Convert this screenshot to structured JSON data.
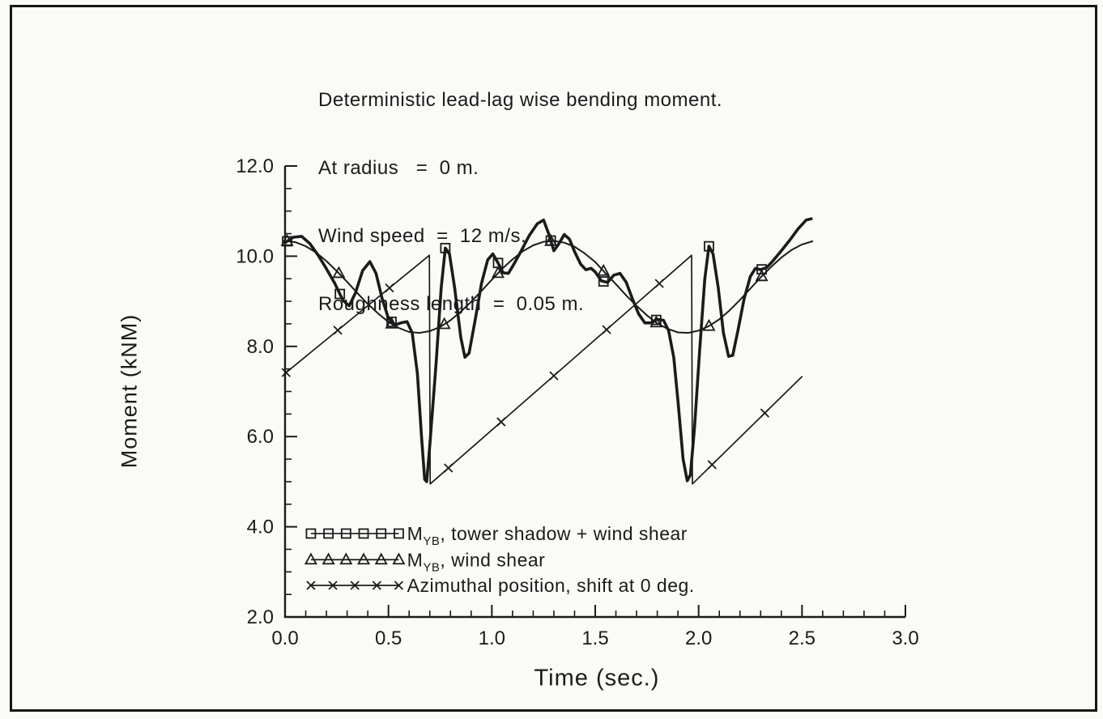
{
  "colors": {
    "ink": "#1b1b1b",
    "paper": "#fafaf7"
  },
  "chart_data": {
    "type": "line",
    "header_lines": [
      "Deterministic lead-lag wise bending moment.",
      "At radius   =  0 m.",
      "Wind speed  =  12 m/s.",
      "Roughness length  =  0.05 m."
    ],
    "xlabel": "Time  (sec.)",
    "ylabel": "Moment  (kNM)",
    "xlim": [
      0,
      3
    ],
    "ylim": [
      2,
      12
    ],
    "xticks": [
      0,
      0.5,
      1.0,
      1.5,
      2.0,
      2.5,
      3.0
    ],
    "xtick_labels": [
      "0.0",
      "0.5",
      "1.0",
      "1.5",
      "2.0",
      "2.5",
      "3.0"
    ],
    "yticks": [
      2,
      4,
      6,
      8,
      10,
      12
    ],
    "ytick_labels": [
      "2.0",
      "4.0",
      "6.0",
      "8.0",
      "10.0",
      "12.0"
    ],
    "x_minor_step": 0.1,
    "y_minor_step": 0.5,
    "grid": false,
    "series": [
      {
        "name": "MYB, tower shadow + wind shear",
        "marker": "square",
        "line_width": 3.6,
        "points": [
          [
            0.0,
            10.3
          ],
          [
            0.04,
            10.42
          ],
          [
            0.08,
            10.44
          ],
          [
            0.12,
            10.28
          ],
          [
            0.16,
            10.02
          ],
          [
            0.2,
            9.72
          ],
          [
            0.24,
            9.4
          ],
          [
            0.28,
            9.02
          ],
          [
            0.31,
            8.9
          ],
          [
            0.34,
            9.18
          ],
          [
            0.375,
            9.68
          ],
          [
            0.41,
            9.88
          ],
          [
            0.44,
            9.62
          ],
          [
            0.47,
            9.05
          ],
          [
            0.5,
            8.62
          ],
          [
            0.53,
            8.47
          ],
          [
            0.56,
            8.52
          ],
          [
            0.59,
            8.55
          ],
          [
            0.615,
            8.3
          ],
          [
            0.64,
            7.4
          ],
          [
            0.66,
            6.0
          ],
          [
            0.675,
            5.05
          ],
          [
            0.685,
            5.0
          ],
          [
            0.7,
            5.8
          ],
          [
            0.73,
            7.6
          ],
          [
            0.755,
            9.3
          ],
          [
            0.775,
            10.18
          ],
          [
            0.795,
            10.05
          ],
          [
            0.82,
            9.3
          ],
          [
            0.85,
            8.2
          ],
          [
            0.87,
            7.76
          ],
          [
            0.89,
            7.85
          ],
          [
            0.92,
            8.6
          ],
          [
            0.95,
            9.4
          ],
          [
            0.98,
            9.92
          ],
          [
            1.005,
            10.05
          ],
          [
            1.03,
            9.85
          ],
          [
            1.055,
            9.63
          ],
          [
            1.08,
            9.62
          ],
          [
            1.11,
            9.85
          ],
          [
            1.14,
            10.1
          ],
          [
            1.18,
            10.45
          ],
          [
            1.22,
            10.72
          ],
          [
            1.25,
            10.8
          ],
          [
            1.275,
            10.5
          ],
          [
            1.3,
            10.12
          ],
          [
            1.325,
            10.28
          ],
          [
            1.35,
            10.48
          ],
          [
            1.375,
            10.38
          ],
          [
            1.4,
            10.1
          ],
          [
            1.43,
            9.82
          ],
          [
            1.455,
            9.7
          ],
          [
            1.48,
            9.73
          ],
          [
            1.5,
            9.65
          ],
          [
            1.53,
            9.45
          ],
          [
            1.56,
            9.42
          ],
          [
            1.59,
            9.58
          ],
          [
            1.62,
            9.62
          ],
          [
            1.65,
            9.42
          ],
          [
            1.68,
            9.05
          ],
          [
            1.71,
            8.72
          ],
          [
            1.74,
            8.52
          ],
          [
            1.77,
            8.52
          ],
          [
            1.8,
            8.6
          ],
          [
            1.83,
            8.58
          ],
          [
            1.855,
            8.35
          ],
          [
            1.88,
            7.75
          ],
          [
            1.9,
            6.8
          ],
          [
            1.925,
            5.5
          ],
          [
            1.945,
            5.02
          ],
          [
            1.96,
            5.15
          ],
          [
            1.98,
            6.2
          ],
          [
            2.005,
            7.9
          ],
          [
            2.03,
            9.5
          ],
          [
            2.05,
            10.22
          ],
          [
            2.07,
            10.05
          ],
          [
            2.095,
            9.3
          ],
          [
            2.12,
            8.3
          ],
          [
            2.145,
            7.78
          ],
          [
            2.165,
            7.8
          ],
          [
            2.19,
            8.35
          ],
          [
            2.22,
            9.05
          ],
          [
            2.25,
            9.55
          ],
          [
            2.275,
            9.73
          ],
          [
            2.3,
            9.7
          ],
          [
            2.33,
            9.75
          ],
          [
            2.36,
            9.9
          ],
          [
            2.4,
            10.12
          ],
          [
            2.44,
            10.35
          ],
          [
            2.48,
            10.6
          ],
          [
            2.52,
            10.8
          ],
          [
            2.545,
            10.83
          ]
        ],
        "marker_t": [
          0.01,
          0.265,
          0.515,
          0.775,
          1.03,
          1.285,
          1.54,
          1.795,
          2.05,
          2.305
        ]
      },
      {
        "name": "MYB, wind shear",
        "marker": "triangle",
        "line_width": 2.0,
        "points": [
          [
            0,
            10.34
          ],
          [
            0.05,
            10.31
          ],
          [
            0.1,
            10.22
          ],
          [
            0.15,
            10.08
          ],
          [
            0.2,
            9.89
          ],
          [
            0.25,
            9.67
          ],
          [
            0.3,
            9.43
          ],
          [
            0.35,
            9.18
          ],
          [
            0.4,
            8.94
          ],
          [
            0.45,
            8.73
          ],
          [
            0.5,
            8.54
          ],
          [
            0.55,
            8.41
          ],
          [
            0.6,
            8.32
          ],
          [
            0.65,
            8.3
          ],
          [
            0.7,
            8.34
          ],
          [
            0.75,
            8.43
          ],
          [
            0.8,
            8.58
          ],
          [
            0.85,
            8.77
          ],
          [
            0.9,
            8.99
          ],
          [
            0.95,
            9.23
          ],
          [
            1.0,
            9.48
          ],
          [
            1.05,
            9.72
          ],
          [
            1.1,
            9.93
          ],
          [
            1.15,
            10.11
          ],
          [
            1.2,
            10.24
          ],
          [
            1.25,
            10.32
          ],
          [
            1.3,
            10.34
          ],
          [
            1.35,
            10.3
          ],
          [
            1.4,
            10.21
          ],
          [
            1.45,
            10.06
          ],
          [
            1.5,
            9.87
          ],
          [
            1.55,
            9.62
          ],
          [
            1.6,
            9.38
          ],
          [
            1.65,
            9.13
          ],
          [
            1.7,
            8.9
          ],
          [
            1.75,
            8.69
          ],
          [
            1.8,
            8.51
          ],
          [
            1.85,
            8.39
          ],
          [
            1.9,
            8.31
          ],
          [
            1.95,
            8.3
          ],
          [
            2.0,
            8.35
          ],
          [
            2.05,
            8.45
          ],
          [
            2.1,
            8.6
          ],
          [
            2.15,
            8.8
          ],
          [
            2.2,
            9.03
          ],
          [
            2.25,
            9.28
          ],
          [
            2.3,
            9.53
          ],
          [
            2.35,
            9.76
          ],
          [
            2.4,
            9.97
          ],
          [
            2.45,
            10.14
          ],
          [
            2.5,
            10.26
          ],
          [
            2.55,
            10.33
          ]
        ],
        "marker_t": [
          0.01,
          0.26,
          0.515,
          0.77,
          1.03,
          1.285,
          1.54,
          1.795,
          2.05,
          2.305
        ]
      },
      {
        "name": "Azimuthal position, shift at 0 deg.",
        "marker": "x",
        "line_width": 1.7,
        "points": [
          [
            0,
            7.4
          ],
          [
            0.698,
            10.02
          ],
          [
            0.702,
            4.95
          ],
          [
            1.966,
            10.02
          ],
          [
            1.97,
            4.95
          ],
          [
            2.5,
            7.33
          ]
        ],
        "marker_t": [
          0.005,
          0.255,
          0.505,
          0.79,
          1.045,
          1.3,
          1.555,
          1.81,
          2.065,
          2.32
        ]
      }
    ],
    "legend": {
      "position": "lower-left",
      "t_start": 0.125,
      "t_end": 0.55,
      "t_text": 0.59,
      "row_y": [
        3.85,
        3.27,
        2.7
      ],
      "rows": [
        {
          "marker": "square",
          "marker_count": 6,
          "label_main": "M",
          "label_sub": "YB",
          "label_rest": ", tower shadow + wind shear"
        },
        {
          "marker": "triangle",
          "marker_count": 6,
          "label_main": "M",
          "label_sub": "YB",
          "label_rest": ", wind shear"
        },
        {
          "marker": "x",
          "marker_count": 5,
          "label": "Azimuthal position, shift at 0 deg."
        }
      ]
    }
  }
}
